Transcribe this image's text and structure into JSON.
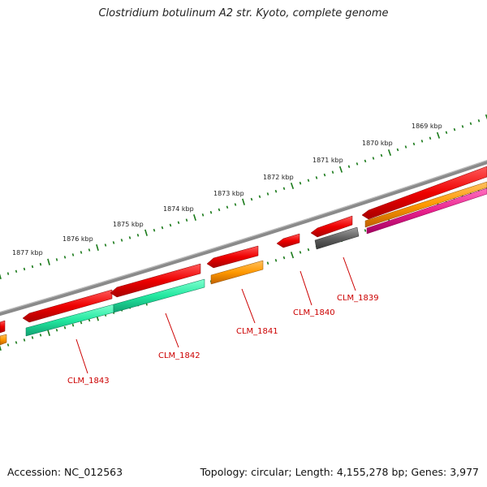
{
  "title": "Clostridium botulinum A2 str. Kyoto, complete genome",
  "footer": {
    "accession": "Accession: NC_012563",
    "summary": "Topology: circular; Length: 4,155,278 bp; Genes: 3,977"
  },
  "ruler": {
    "ticks": [
      {
        "label": "1869 kbp"
      },
      {
        "label": "1870 kbp"
      },
      {
        "label": "1871 kbp"
      },
      {
        "label": "1872 kbp"
      },
      {
        "label": "1873 kbp"
      },
      {
        "label": "1874 kbp"
      },
      {
        "label": "1875 kbp"
      },
      {
        "label": "1876 kbp"
      },
      {
        "label": "1877 kbp"
      }
    ]
  },
  "genes": [
    {
      "label": "CLM_1839"
    },
    {
      "label": "CLM_1840"
    },
    {
      "label": "CLM_1841"
    },
    {
      "label": "CLM_1842"
    },
    {
      "label": "CLM_1843"
    }
  ],
  "colors": {
    "cds": "#ee0000",
    "backbone": "#808080",
    "cog_green": "#22e8a0",
    "cog_orange": "#ff9900",
    "cog_gray": "#606060",
    "cog_magenta": "#e8208c",
    "ruler_ticks": "#1a7a1a",
    "gene_label": "#cc0000"
  }
}
